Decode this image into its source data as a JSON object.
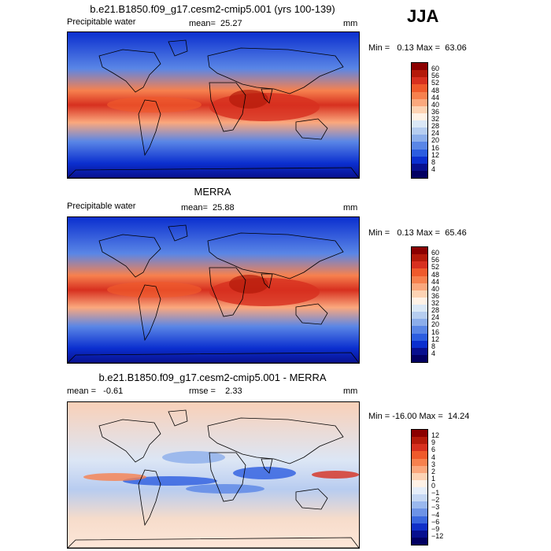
{
  "season": "JJA",
  "panels": [
    {
      "title": "b.e21.B1850.f09_g17.cesm2-cmip5.001 (yrs 100-139)",
      "left_label": "Precipitable water",
      "center_label": "mean=  25.27",
      "units": "mm",
      "minmax": "Min =   0.13 Max =  63.06",
      "kind": "model"
    },
    {
      "title": "MERRA",
      "left_label": "Precipitable water",
      "center_label": "mean=  25.88",
      "units": "mm",
      "minmax": "Min =   0.13 Max =  65.46",
      "kind": "obs"
    },
    {
      "title": "b.e21.B1850.f09_g17.cesm2-cmip5.001 - MERRA",
      "left_label": "mean =   -0.61",
      "center_label": "rmse =    2.33",
      "units": "mm",
      "minmax": "Min = -16.00 Max =  14.24",
      "kind": "diff"
    }
  ],
  "colorbar_levels": [
    "60",
    "56",
    "52",
    "48",
    "44",
    "40",
    "36",
    "32",
    "28",
    "24",
    "20",
    "16",
    "12",
    "8",
    "4"
  ],
  "colorbar_colors": [
    "#8b0000",
    "#b41a0a",
    "#d7301f",
    "#ef5a2c",
    "#f7814e",
    "#fba87d",
    "#fdd3b4",
    "#fff2e6",
    "#dbe8f6",
    "#b6cdf0",
    "#8caeeb",
    "#5a86e6",
    "#2c5de0",
    "#0b2fcf",
    "#08108f",
    "#020062"
  ],
  "diff_levels": [
    "12",
    "9",
    "6",
    "4",
    "3",
    "2",
    "1",
    "0",
    "−1",
    "−2",
    "−3",
    "−4",
    "−6",
    "−9",
    "−12"
  ],
  "diff_colors": [
    "#8b0000",
    "#b41a0a",
    "#d7301f",
    "#ef5a2c",
    "#f7814e",
    "#fba87d",
    "#fdd3b4",
    "#fff2e6",
    "#e6eef9",
    "#c5d7f3",
    "#9ab8ee",
    "#6d93e6",
    "#3a67de",
    "#1030c8",
    "#08108f",
    "#020062"
  ]
}
